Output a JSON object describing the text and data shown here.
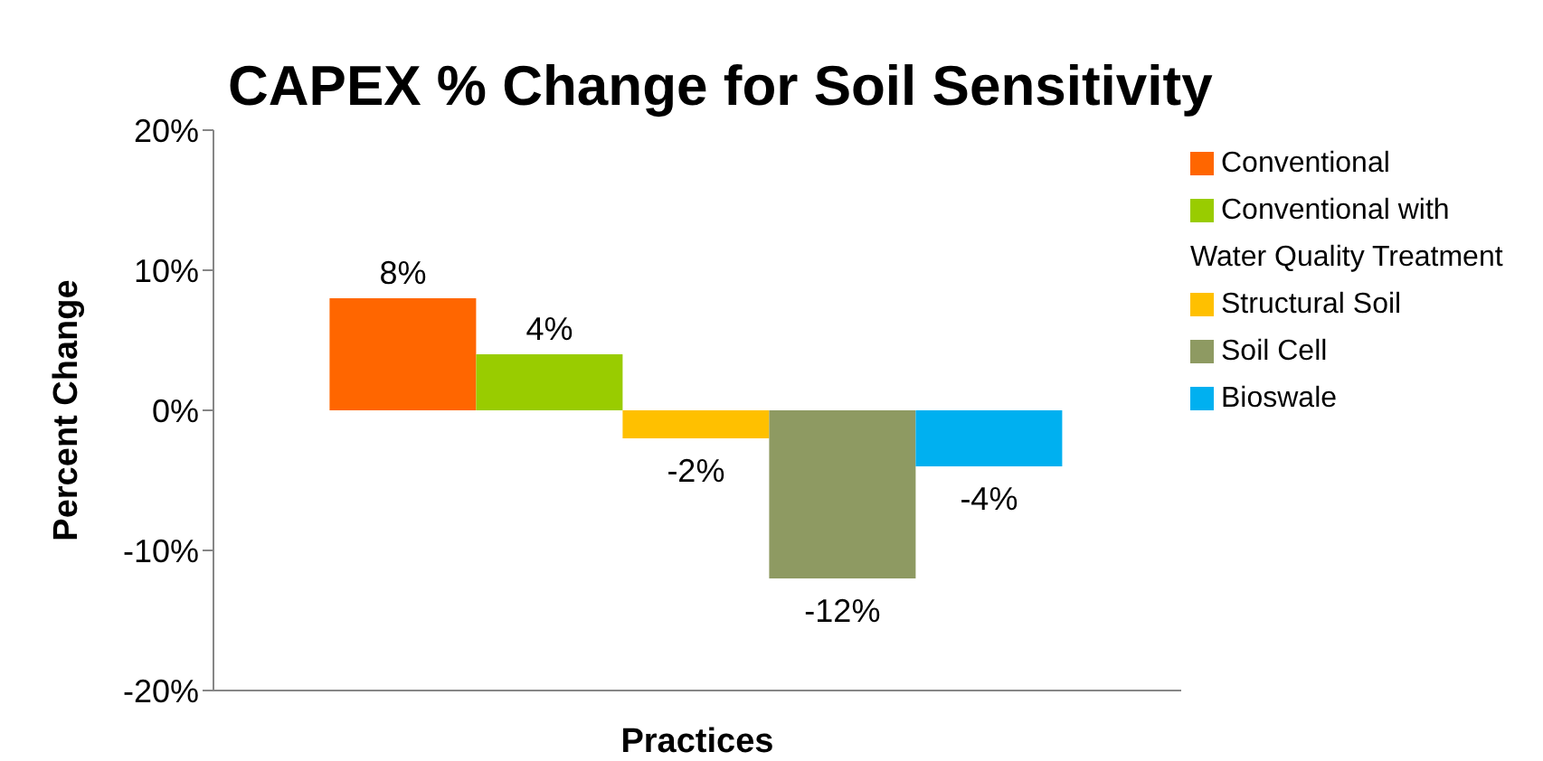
{
  "chart_data": {
    "type": "bar",
    "title": "CAPEX % Change for Soil Sensitivity",
    "xlabel": "Practices",
    "ylabel": "Percent Change",
    "categories": [
      null
    ],
    "series": [
      {
        "name": "Conventional",
        "color": "#ff6600",
        "values": [
          8
        ],
        "value_labels": [
          "8%"
        ]
      },
      {
        "name": "Conventional with Water Quality Treatment",
        "color": "#99cc00",
        "values": [
          4
        ],
        "value_labels": [
          "4%"
        ]
      },
      {
        "name": "Structural Soil",
        "color": "#ffc000",
        "values": [
          -2
        ],
        "value_labels": [
          "-2%"
        ]
      },
      {
        "name": "Soil Cell",
        "color": "#8e9a62",
        "values": [
          -12
        ],
        "value_labels": [
          "-12%"
        ]
      },
      {
        "name": "Bioswale",
        "color": "#00b0f0",
        "values": [
          -4
        ],
        "value_labels": [
          "-4%"
        ]
      }
    ],
    "ylim": [
      -20,
      20
    ],
    "yticks": [
      {
        "value": -20,
        "label": "-20%"
      },
      {
        "value": -10,
        "label": "-10%"
      },
      {
        "value": 0,
        "label": "0%"
      },
      {
        "value": 10,
        "label": "10%"
      },
      {
        "value": 20,
        "label": "20%"
      }
    ],
    "grid": false,
    "legend": "right"
  }
}
